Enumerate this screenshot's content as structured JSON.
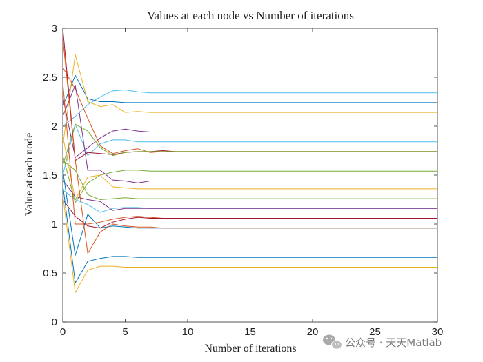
{
  "chart_data": {
    "type": "line",
    "title": "Values at each node vs Number of iterations",
    "xlabel": "Number of iterations",
    "ylabel": "Value at each node",
    "xlim": [
      0,
      30
    ],
    "ylim": [
      0,
      3
    ],
    "xticks": [
      "0",
      "5",
      "10",
      "15",
      "20",
      "25",
      "30"
    ],
    "yticks": [
      "0",
      "0.5",
      "1",
      "1.5",
      "2",
      "2.5",
      "3"
    ],
    "grid": false,
    "legend": "none",
    "x": [
      0,
      1,
      2,
      3,
      4,
      5,
      6,
      7,
      8,
      9,
      10,
      11,
      12,
      13,
      14,
      15,
      16,
      17,
      18,
      19,
      20,
      21,
      22,
      23,
      24,
      25,
      26,
      27,
      28,
      29,
      30
    ],
    "series": [
      {
        "color": "#4dbeee",
        "values": [
          2.0,
          2.1,
          2.22,
          2.3,
          2.36,
          2.37,
          2.35,
          2.34,
          2.34,
          2.34,
          2.34,
          2.34,
          2.34,
          2.34,
          2.34,
          2.34,
          2.34,
          2.34,
          2.34,
          2.34,
          2.34,
          2.34,
          2.34,
          2.34,
          2.34,
          2.34,
          2.34,
          2.34,
          2.34,
          2.34,
          2.34
        ]
      },
      {
        "color": "#0072bd",
        "values": [
          2.2,
          2.52,
          2.28,
          2.25,
          2.25,
          2.24,
          2.24,
          2.24,
          2.24,
          2.24,
          2.24,
          2.24,
          2.24,
          2.24,
          2.24,
          2.24,
          2.24,
          2.24,
          2.24,
          2.24,
          2.24,
          2.24,
          2.24,
          2.24,
          2.24,
          2.24,
          2.24,
          2.24,
          2.24,
          2.24,
          2.24
        ]
      },
      {
        "color": "#edb120",
        "values": [
          1.8,
          2.73,
          2.25,
          2.2,
          2.22,
          2.14,
          2.15,
          2.14,
          2.14,
          2.14,
          2.14,
          2.14,
          2.14,
          2.14,
          2.14,
          2.14,
          2.14,
          2.14,
          2.14,
          2.14,
          2.14,
          2.14,
          2.14,
          2.14,
          2.14,
          2.14,
          2.14,
          2.14,
          2.14,
          2.14,
          2.14
        ]
      },
      {
        "color": "#7e2f8e",
        "values": [
          2.3,
          1.68,
          1.78,
          1.88,
          1.95,
          1.97,
          1.95,
          1.94,
          1.94,
          1.94,
          1.94,
          1.94,
          1.94,
          1.94,
          1.94,
          1.94,
          1.94,
          1.94,
          1.94,
          1.94,
          1.94,
          1.94,
          1.94,
          1.94,
          1.94,
          1.94,
          1.94,
          1.94,
          1.94,
          1.94,
          1.94
        ]
      },
      {
        "color": "#4dbeee",
        "values": [
          1.5,
          2.02,
          1.7,
          1.82,
          1.86,
          1.86,
          1.84,
          1.84,
          1.84,
          1.84,
          1.84,
          1.84,
          1.84,
          1.84,
          1.84,
          1.84,
          1.84,
          1.84,
          1.84,
          1.84,
          1.84,
          1.84,
          1.84,
          1.84,
          1.84,
          1.84,
          1.84,
          1.84,
          1.84,
          1.84,
          1.84
        ]
      },
      {
        "color": "#d95319",
        "values": [
          2.6,
          2.38,
          2.08,
          1.8,
          1.72,
          1.75,
          1.77,
          1.73,
          1.74,
          1.74,
          1.74,
          1.74,
          1.74,
          1.74,
          1.74,
          1.74,
          1.74,
          1.74,
          1.74,
          1.74,
          1.74,
          1.74,
          1.74,
          1.74,
          1.74,
          1.74,
          1.74,
          1.74,
          1.74,
          1.74,
          1.74
        ]
      },
      {
        "color": "#a2142f",
        "values": [
          3.0,
          1.65,
          1.73,
          1.72,
          1.71,
          1.73,
          1.74,
          1.74,
          1.75,
          1.74,
          1.74,
          1.74,
          1.74,
          1.74,
          1.74,
          1.74,
          1.74,
          1.74,
          1.74,
          1.74,
          1.74,
          1.74,
          1.74,
          1.74,
          1.74,
          1.74,
          1.74,
          1.74,
          1.74,
          1.74,
          1.74
        ]
      },
      {
        "color": "#77ac30",
        "values": [
          1.6,
          2.02,
          1.95,
          1.78,
          1.7,
          1.73,
          1.74,
          1.74,
          1.74,
          1.74,
          1.74,
          1.74,
          1.74,
          1.74,
          1.74,
          1.74,
          1.74,
          1.74,
          1.74,
          1.74,
          1.74,
          1.74,
          1.74,
          1.74,
          1.74,
          1.74,
          1.74,
          1.74,
          1.74,
          1.74,
          1.74
        ]
      },
      {
        "color": "#77ac30",
        "values": [
          1.7,
          1.22,
          1.42,
          1.5,
          1.53,
          1.55,
          1.55,
          1.54,
          1.54,
          1.54,
          1.54,
          1.54,
          1.54,
          1.54,
          1.54,
          1.54,
          1.54,
          1.54,
          1.54,
          1.54,
          1.54,
          1.54,
          1.54,
          1.54,
          1.54,
          1.54,
          1.54,
          1.54,
          1.54,
          1.54,
          1.54
        ]
      },
      {
        "color": "#7e2f8e",
        "values": [
          2.1,
          2.42,
          1.55,
          1.55,
          1.45,
          1.44,
          1.42,
          1.44,
          1.44,
          1.44,
          1.44,
          1.44,
          1.44,
          1.44,
          1.44,
          1.44,
          1.44,
          1.44,
          1.44,
          1.44,
          1.44,
          1.44,
          1.44,
          1.44,
          1.44,
          1.44,
          1.44,
          1.44,
          1.44,
          1.44,
          1.44
        ]
      },
      {
        "color": "#edb120",
        "values": [
          1.9,
          1.25,
          1.48,
          1.5,
          1.38,
          1.37,
          1.36,
          1.36,
          1.36,
          1.36,
          1.36,
          1.36,
          1.36,
          1.36,
          1.36,
          1.36,
          1.36,
          1.36,
          1.36,
          1.36,
          1.36,
          1.36,
          1.36,
          1.36,
          1.36,
          1.36,
          1.36,
          1.36,
          1.36,
          1.36,
          1.36
        ]
      },
      {
        "color": "#77ac30",
        "values": [
          1.65,
          1.55,
          1.3,
          1.25,
          1.26,
          1.27,
          1.26,
          1.26,
          1.26,
          1.26,
          1.26,
          1.26,
          1.26,
          1.26,
          1.26,
          1.26,
          1.26,
          1.26,
          1.26,
          1.26,
          1.26,
          1.26,
          1.26,
          1.26,
          1.26,
          1.26,
          1.26,
          1.26,
          1.26,
          1.26,
          1.26
        ]
      },
      {
        "color": "#4dbeee",
        "values": [
          1.35,
          1.25,
          1.2,
          1.12,
          1.16,
          1.17,
          1.17,
          1.16,
          1.16,
          1.16,
          1.16,
          1.16,
          1.16,
          1.16,
          1.16,
          1.16,
          1.16,
          1.16,
          1.16,
          1.16,
          1.16,
          1.16,
          1.16,
          1.16,
          1.16,
          1.16,
          1.16,
          1.16,
          1.16,
          1.16,
          1.16
        ]
      },
      {
        "color": "#7e2f8e",
        "values": [
          1.45,
          1.28,
          1.25,
          1.23,
          1.14,
          1.16,
          1.16,
          1.16,
          1.16,
          1.16,
          1.16,
          1.16,
          1.16,
          1.16,
          1.16,
          1.16,
          1.16,
          1.16,
          1.16,
          1.16,
          1.16,
          1.16,
          1.16,
          1.16,
          1.16,
          1.16,
          1.16,
          1.16,
          1.16,
          1.16,
          1.16
        ]
      },
      {
        "color": "#d95319",
        "values": [
          2.45,
          1.0,
          1.0,
          1.02,
          1.05,
          1.07,
          1.08,
          1.07,
          1.06,
          1.06,
          1.06,
          1.06,
          1.06,
          1.06,
          1.06,
          1.06,
          1.06,
          1.06,
          1.06,
          1.06,
          1.06,
          1.06,
          1.06,
          1.06,
          1.06,
          1.06,
          1.06,
          1.06,
          1.06,
          1.06,
          1.06
        ]
      },
      {
        "color": "#a2142f",
        "values": [
          1.25,
          1.08,
          0.98,
          0.96,
          1.02,
          1.05,
          1.07,
          1.06,
          1.06,
          1.06,
          1.06,
          1.06,
          1.06,
          1.06,
          1.06,
          1.06,
          1.06,
          1.06,
          1.06,
          1.06,
          1.06,
          1.06,
          1.06,
          1.06,
          1.06,
          1.06,
          1.06,
          1.06,
          1.06,
          1.06,
          1.06
        ]
      },
      {
        "color": "#0072bd",
        "values": [
          1.55,
          0.68,
          1.1,
          0.96,
          0.98,
          0.97,
          0.96,
          0.96,
          0.96,
          0.96,
          0.96,
          0.96,
          0.96,
          0.96,
          0.96,
          0.96,
          0.96,
          0.96,
          0.96,
          0.96,
          0.96,
          0.96,
          0.96,
          0.96,
          0.96,
          0.96,
          0.96,
          0.96,
          0.96,
          0.96,
          0.96
        ]
      },
      {
        "color": "#d95319",
        "values": [
          2.9,
          1.65,
          0.7,
          0.92,
          1.0,
          0.98,
          0.97,
          0.97,
          0.96,
          0.96,
          0.96,
          0.96,
          0.96,
          0.96,
          0.96,
          0.96,
          0.96,
          0.96,
          0.96,
          0.96,
          0.96,
          0.96,
          0.96,
          0.96,
          0.96,
          0.96,
          0.96,
          0.96,
          0.96,
          0.96,
          0.96
        ]
      },
      {
        "color": "#0072bd",
        "values": [
          1.4,
          0.4,
          0.62,
          0.65,
          0.67,
          0.67,
          0.66,
          0.66,
          0.66,
          0.66,
          0.66,
          0.66,
          0.66,
          0.66,
          0.66,
          0.66,
          0.66,
          0.66,
          0.66,
          0.66,
          0.66,
          0.66,
          0.66,
          0.66,
          0.66,
          0.66,
          0.66,
          0.66,
          0.66,
          0.66,
          0.66
        ]
      },
      {
        "color": "#edb120",
        "values": [
          1.3,
          0.3,
          0.53,
          0.57,
          0.57,
          0.56,
          0.56,
          0.56,
          0.56,
          0.56,
          0.56,
          0.56,
          0.56,
          0.56,
          0.56,
          0.56,
          0.56,
          0.56,
          0.56,
          0.56,
          0.56,
          0.56,
          0.56,
          0.56,
          0.56,
          0.56,
          0.56,
          0.56,
          0.56,
          0.56,
          0.56
        ]
      }
    ]
  },
  "watermark": {
    "icon": "wechat-icon",
    "text": "公众号 · 天天Matlab",
    "color": "#7a7a7a"
  }
}
